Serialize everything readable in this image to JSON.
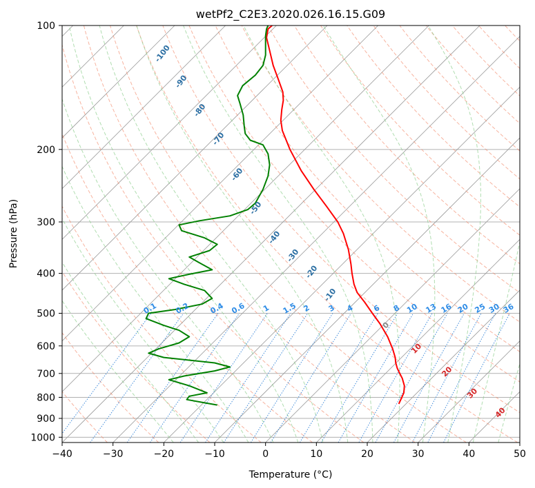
{
  "chart_data": {
    "type": "line",
    "chart_kind": "skew-t log-p",
    "title": "wetPf2_C2E3.2020.026.16.15.G09",
    "xlabel": "Temperature (°C)",
    "ylabel": "Pressure (hPa)",
    "xlim": [
      -40,
      50
    ],
    "ylim": [
      1030,
      100
    ],
    "y_scale": "log",
    "grid": true,
    "x_ticks": [
      -40,
      -30,
      -20,
      -10,
      0,
      10,
      20,
      30,
      40,
      50
    ],
    "y_ticks": [
      100,
      200,
      300,
      400,
      500,
      600,
      700,
      800,
      900,
      1000
    ],
    "series": [
      {
        "key": "temperature",
        "color": "#ff0000",
        "points": [
          [
            26.2,
            830
          ],
          [
            26.6,
            810
          ],
          [
            27.2,
            780
          ],
          [
            27.3,
            750
          ],
          [
            26.9,
            720
          ],
          [
            26.4,
            700
          ],
          [
            25.9,
            680
          ],
          [
            25.6,
            660
          ],
          [
            25.5,
            640
          ],
          [
            25.0,
            610
          ],
          [
            24.0,
            570
          ],
          [
            22.5,
            530
          ],
          [
            21.0,
            500
          ],
          [
            19.5,
            470
          ],
          [
            18.0,
            445
          ],
          [
            17.4,
            425
          ],
          [
            17.0,
            400
          ],
          [
            16.8,
            380
          ],
          [
            16.3,
            350
          ],
          [
            15.3,
            320
          ],
          [
            14.2,
            300
          ],
          [
            12.0,
            275
          ],
          [
            9.5,
            250
          ],
          [
            7.0,
            225
          ],
          [
            4.8,
            200
          ],
          [
            3.3,
            180
          ],
          [
            3.0,
            170
          ],
          [
            3.2,
            160
          ],
          [
            3.5,
            152
          ],
          [
            3.4,
            145
          ],
          [
            2.5,
            135
          ],
          [
            1.5,
            125
          ],
          [
            0.8,
            115
          ],
          [
            0.2,
            107
          ],
          [
            0.5,
            102
          ],
          [
            1.3,
            100
          ]
        ]
      },
      {
        "key": "dewpoint",
        "color": "#008000",
        "points": [
          [
            -9.5,
            835
          ],
          [
            -12,
            825
          ],
          [
            -15.5,
            810
          ],
          [
            -15.0,
            795
          ],
          [
            -11.5,
            780
          ],
          [
            -15.0,
            750
          ],
          [
            -19.0,
            725
          ],
          [
            -16.0,
            710
          ],
          [
            -10.0,
            690
          ],
          [
            -7.0,
            675
          ],
          [
            -10.0,
            660
          ],
          [
            -20.0,
            640
          ],
          [
            -23.0,
            625
          ],
          [
            -21.0,
            610
          ],
          [
            -17.0,
            590
          ],
          [
            -15.0,
            570
          ],
          [
            -17.0,
            550
          ],
          [
            -20.0,
            535
          ],
          [
            -23.5,
            515
          ],
          [
            -23.0,
            500
          ],
          [
            -18.0,
            490
          ],
          [
            -12.5,
            475
          ],
          [
            -10.5,
            460
          ],
          [
            -12.0,
            440
          ],
          [
            -16.0,
            425
          ],
          [
            -19.0,
            412
          ],
          [
            -15.0,
            402
          ],
          [
            -10.5,
            392
          ],
          [
            -13.0,
            377
          ],
          [
            -15.0,
            365
          ],
          [
            -11.0,
            352
          ],
          [
            -9.5,
            340
          ],
          [
            -12.0,
            328
          ],
          [
            -16.5,
            315
          ],
          [
            -17.0,
            305
          ],
          [
            -13.0,
            298
          ],
          [
            -7.0,
            290
          ],
          [
            -3.5,
            280
          ],
          [
            -2.0,
            270
          ],
          [
            -0.5,
            250
          ],
          [
            0.5,
            232
          ],
          [
            0.8,
            218
          ],
          [
            0.5,
            205
          ],
          [
            -0.5,
            195
          ],
          [
            -3.0,
            190
          ],
          [
            -4.0,
            183
          ],
          [
            -4.2,
            175
          ],
          [
            -4.4,
            165
          ],
          [
            -5.0,
            155
          ],
          [
            -5.5,
            148
          ],
          [
            -4.5,
            140
          ],
          [
            -2.0,
            132
          ],
          [
            -0.5,
            125
          ],
          [
            0.0,
            118
          ],
          [
            0.0,
            112
          ],
          [
            0.0,
            106
          ],
          [
            0.2,
            102
          ],
          [
            0.5,
            100
          ]
        ]
      }
    ],
    "dry_adiabat_labels": [
      "-100",
      "-90",
      "-80",
      "-70",
      "-60",
      "-50",
      "-40",
      "-30",
      "-20",
      "-10"
    ],
    "moist_adiabat_labels": [
      "0",
      "10",
      "20",
      "30",
      "40"
    ],
    "mixing_ratio_labels": [
      "0.1",
      "0.2",
      "0.4",
      "0.6",
      "1",
      "1.5",
      "2",
      "3",
      "4",
      "6",
      "8",
      "10",
      "13",
      "16",
      "20",
      "25",
      "30",
      "36"
    ]
  },
  "colors": {
    "grid": "#b0b0b0",
    "isotherm": "#9a9a9a",
    "dry_adiabat": "#f28a6b",
    "moist_adiabat": "#8fce8f",
    "mixing_ratio": "#1f77d4",
    "mixing_label": "#2e8ce6",
    "dry_label": "#2c6fa3",
    "moist_label": "#d62728",
    "zero_label": "#888888"
  }
}
